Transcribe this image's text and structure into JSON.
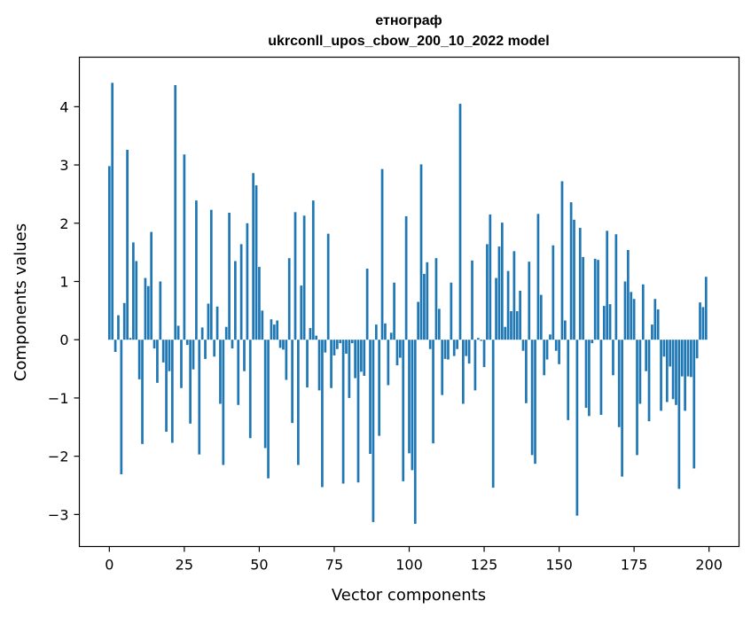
{
  "chart_data": {
    "type": "bar",
    "title_line1": "етнограф",
    "title_line2": "ukrconll_upos_cbow_200_10_2022 model",
    "xlabel": "Vector components",
    "ylabel": "Components values",
    "xlim": [
      -10,
      210
    ],
    "ylim": [
      -3.55,
      4.85
    ],
    "xticks": [
      0,
      25,
      50,
      75,
      100,
      125,
      150,
      175,
      200
    ],
    "yticks": [
      -3,
      -2,
      -1,
      0,
      1,
      2,
      3,
      4
    ],
    "ytick_labels": [
      "−3",
      "−2",
      "−1",
      "0",
      "1",
      "2",
      "3",
      "4"
    ],
    "grid": false,
    "legend": "none",
    "bar_color": "#1f77b4",
    "values": [
      2.98,
      4.41,
      -0.21,
      0.42,
      -2.31,
      0.63,
      3.26,
      0.03,
      1.67,
      1.35,
      -0.68,
      -1.79,
      1.06,
      0.92,
      1.85,
      -0.15,
      -0.74,
      1.0,
      -0.39,
      -1.58,
      -0.54,
      -1.77,
      4.37,
      0.24,
      -0.83,
      3.18,
      -0.09,
      -1.44,
      -0.51,
      2.39,
      -1.97,
      0.21,
      -0.33,
      0.62,
      2.23,
      -0.29,
      0.57,
      -1.1,
      -2.15,
      0.22,
      2.18,
      -0.15,
      1.35,
      -1.12,
      1.64,
      -0.54,
      2.0,
      -1.69,
      2.86,
      2.65,
      1.25,
      0.5,
      -1.86,
      -2.38,
      0.35,
      0.26,
      0.33,
      -0.14,
      -0.17,
      -0.69,
      1.4,
      -1.43,
      2.19,
      -2.15,
      0.93,
      2.13,
      -0.82,
      0.2,
      2.39,
      0.07,
      -0.87,
      -2.53,
      -0.22,
      1.82,
      -0.83,
      -0.27,
      -0.16,
      -0.06,
      -2.47,
      -0.24,
      -1.0,
      -0.06,
      -0.66,
      -2.45,
      -0.55,
      -0.62,
      1.22,
      -1.96,
      -3.13,
      0.26,
      -1.65,
      2.93,
      0.28,
      -0.78,
      0.12,
      0.98,
      -0.44,
      -0.31,
      -2.43,
      2.12,
      -1.95,
      -2.24,
      -3.16,
      0.65,
      3.01,
      1.13,
      1.33,
      -0.16,
      -1.78,
      1.4,
      0.53,
      -0.95,
      -0.33,
      -0.34,
      0.98,
      -0.28,
      -0.16,
      4.05,
      -1.1,
      -0.28,
      -0.41,
      1.36,
      -0.87,
      0.03,
      -0.02,
      -0.47,
      1.64,
      2.15,
      -2.54,
      1.06,
      1.6,
      2.01,
      0.22,
      1.18,
      0.49,
      1.52,
      0.49,
      0.84,
      -0.19,
      -1.09,
      1.34,
      -1.98,
      -2.13,
      2.16,
      0.77,
      -0.61,
      -0.34,
      0.09,
      1.62,
      -0.19,
      -0.42,
      2.72,
      0.33,
      -1.38,
      2.36,
      2.06,
      -3.02,
      1.92,
      1.42,
      -1.17,
      -1.31,
      -0.06,
      1.39,
      1.37,
      -1.29,
      0.58,
      1.87,
      0.61,
      -0.61,
      1.81,
      -1.5,
      -2.35,
      1.0,
      1.54,
      0.82,
      0.7,
      -1.98,
      -1.1,
      0.95,
      -0.54,
      -1.4,
      0.26,
      0.7,
      0.52,
      -1.22,
      -0.29,
      -1.07,
      -0.46,
      -1.02,
      -1.12,
      -2.56,
      -0.63,
      -1.22,
      -0.63,
      -0.64,
      -2.21,
      -0.32,
      0.64,
      0.56,
      1.08
    ]
  }
}
